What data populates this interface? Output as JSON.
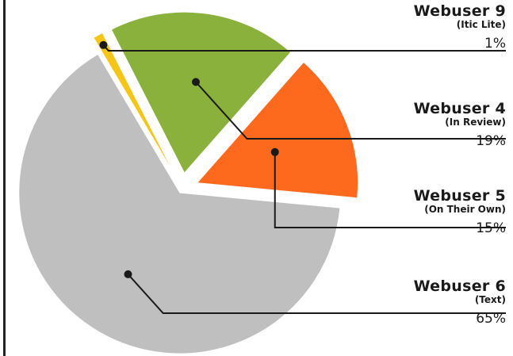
{
  "chart_data": {
    "type": "pie",
    "exploded": true,
    "slices": [
      {
        "name": "Webuser 9",
        "subtitle": "(Itic Lite)",
        "value": 1,
        "value_label": "1%",
        "color": "#f5c518"
      },
      {
        "name": "Webuser 4",
        "subtitle": "(In Review)",
        "value": 19,
        "value_label": "19%",
        "color": "#8ab13c"
      },
      {
        "name": "Webuser 5",
        "subtitle": "(On Their Own)",
        "value": 15,
        "value_label": "15%",
        "color": "#fd6a1e"
      },
      {
        "name": "Webuser 6",
        "subtitle": "(Text)",
        "value": 65,
        "value_label": "65%",
        "color": "#bfbfbf"
      }
    ]
  }
}
